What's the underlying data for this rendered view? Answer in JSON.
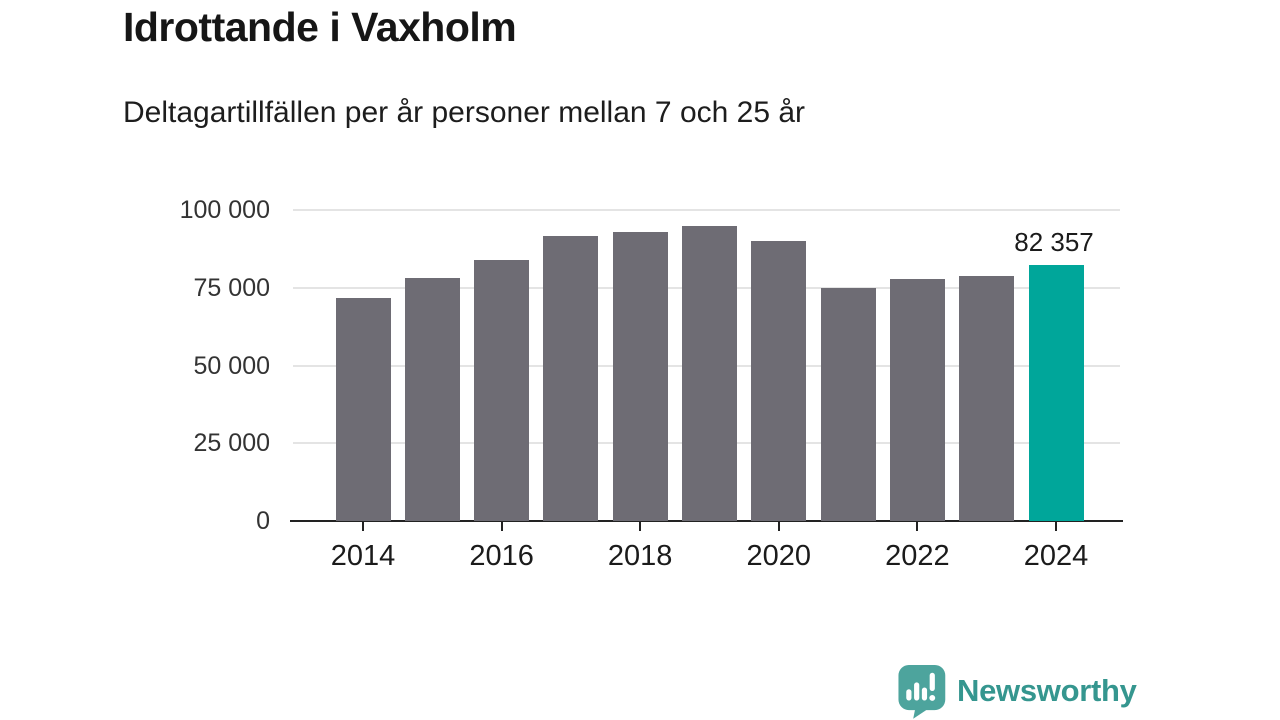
{
  "chart_data": {
    "type": "bar",
    "title": "Idrottande i Vaxholm",
    "subtitle": "Deltagartillfällen per år personer mellan 7 och 25 år",
    "categories": [
      "2014",
      "2015",
      "2016",
      "2017",
      "2018",
      "2019",
      "2020",
      "2021",
      "2022",
      "2023",
      "2024"
    ],
    "values": [
      71700,
      78000,
      84000,
      91500,
      93000,
      95000,
      90000,
      75000,
      77900,
      78800,
      82357
    ],
    "highlight_index": 10,
    "highlight_value_label": "82 357",
    "xticks": [
      "2014",
      "2016",
      "2018",
      "2020",
      "2022",
      "2024"
    ],
    "yticks": [
      0,
      25000,
      50000,
      75000,
      100000
    ],
    "ytick_labels": [
      "0",
      "25 000",
      "50 000",
      "75 000",
      "100 000"
    ],
    "ylim": [
      0,
      100000
    ],
    "xlabel": "",
    "ylabel": "",
    "grid": "horizontal",
    "legend": "none",
    "bar_color": "#6E6C74",
    "highlight_color": "#00A69A",
    "gridline_color": "#E4E4E4",
    "axis_color": "#222222"
  },
  "footer": {
    "brand": "Newsworthy",
    "brand_color": "#35968F",
    "icon_color": "#4DA49D"
  }
}
